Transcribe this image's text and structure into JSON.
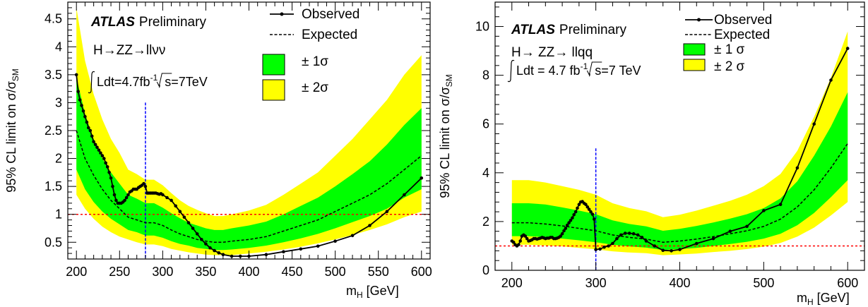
{
  "colors": {
    "band_2sigma": "#ffff00",
    "band_1sigma": "#00ff00",
    "observed": "#000000",
    "expected": "#000000",
    "sm_line": "#ff0000",
    "marker_line": "#0000ff"
  },
  "chart_data": [
    {
      "type": "line",
      "experiment": "ATLAS",
      "status": "Preliminary",
      "process": "H→ZZ→llνν",
      "lumi": {
        "lumi_text": "Ldt=4.7fb",
        "lumi_exp": "-1",
        "energy_text": "s=7TeV"
      },
      "xlabel": "m",
      "xlabel_sub": "H",
      "xlabel_unit": " [GeV]",
      "ylabel": "95% CL limit on σ/σ",
      "ylabel_sub": "SM",
      "xlim": [
        190,
        610
      ],
      "ylim": [
        0.2,
        4.8
      ],
      "xticks": [
        200,
        250,
        300,
        350,
        400,
        450,
        500,
        550,
        600
      ],
      "xtick_labels": [
        "200",
        "250",
        "300",
        "350",
        "400",
        "450",
        "500",
        "550",
        "600"
      ],
      "yticks": [
        0.5,
        1,
        1.5,
        2,
        2.5,
        3,
        3.5,
        4,
        4.5
      ],
      "ytick_labels": [
        "0.5",
        "1",
        "1.5",
        "2",
        "2.5",
        "3",
        "3.5",
        "4",
        "4.5"
      ],
      "legend": {
        "observed": "Observed",
        "expected": "Expected",
        "one_sigma": "± 1σ",
        "two_sigma": "± 2σ"
      },
      "reference_y": 1,
      "vertical_marker_x": 280,
      "vertical_marker_ytop": 3.0,
      "observed": {
        "x": [
          200,
          202,
          204,
          206,
          208,
          210,
          212,
          214,
          216,
          218,
          220,
          222,
          224,
          226,
          228,
          230,
          232,
          234,
          236,
          238,
          240,
          242,
          244,
          246,
          248,
          250,
          252,
          254,
          256,
          258,
          260,
          262,
          264,
          266,
          268,
          270,
          272,
          274,
          276,
          278,
          280,
          282,
          284,
          286,
          288,
          290,
          292,
          294,
          296,
          298,
          300,
          305,
          310,
          315,
          320,
          325,
          330,
          335,
          340,
          345,
          350,
          355,
          360,
          365,
          370,
          380,
          390,
          400,
          420,
          440,
          460,
          480,
          500,
          520,
          540,
          560,
          580,
          600
        ],
        "y": [
          3.5,
          3.2,
          3.05,
          2.95,
          2.85,
          2.75,
          2.65,
          2.55,
          2.5,
          2.4,
          2.3,
          2.25,
          2.2,
          2.15,
          2.1,
          2.05,
          2.0,
          1.92,
          1.85,
          1.75,
          1.65,
          1.5,
          1.35,
          1.25,
          1.2,
          1.2,
          1.2,
          1.22,
          1.25,
          1.3,
          1.35,
          1.4,
          1.42,
          1.45,
          1.45,
          1.45,
          1.48,
          1.5,
          1.52,
          1.55,
          1.5,
          1.38,
          1.38,
          1.38,
          1.38,
          1.38,
          1.38,
          1.37,
          1.36,
          1.37,
          1.35,
          1.3,
          1.25,
          1.15,
          1.05,
          0.95,
          0.85,
          0.75,
          0.65,
          0.55,
          0.47,
          0.4,
          0.35,
          0.31,
          0.28,
          0.25,
          0.25,
          0.25,
          0.28,
          0.33,
          0.38,
          0.43,
          0.52,
          0.62,
          0.8,
          1.05,
          1.35,
          1.65
        ]
      },
      "expected": {
        "x": [
          200,
          210,
          220,
          230,
          240,
          250,
          260,
          270,
          280,
          290,
          300,
          310,
          320,
          330,
          340,
          350,
          360,
          370,
          380,
          400,
          420,
          440,
          460,
          480,
          500,
          520,
          540,
          560,
          580,
          600
        ],
        "y": [
          2.5,
          2.0,
          1.7,
          1.45,
          1.25,
          1.1,
          0.95,
          0.9,
          0.85,
          0.85,
          0.8,
          0.72,
          0.65,
          0.6,
          0.55,
          0.52,
          0.5,
          0.5,
          0.52,
          0.55,
          0.6,
          0.7,
          0.8,
          0.9,
          1.05,
          1.2,
          1.35,
          1.55,
          1.8,
          2.05
        ]
      },
      "band_1sigma": {
        "x": [
          200,
          210,
          220,
          230,
          240,
          250,
          260,
          270,
          280,
          290,
          300,
          310,
          320,
          330,
          340,
          350,
          360,
          370,
          380,
          400,
          420,
          440,
          460,
          480,
          500,
          520,
          540,
          560,
          580,
          600
        ],
        "low": [
          1.8,
          1.45,
          1.22,
          1.05,
          0.92,
          0.82,
          0.72,
          0.68,
          0.62,
          0.62,
          0.58,
          0.52,
          0.47,
          0.44,
          0.4,
          0.38,
          0.36,
          0.36,
          0.37,
          0.4,
          0.44,
          0.5,
          0.57,
          0.65,
          0.75,
          0.86,
          0.97,
          1.1,
          1.3,
          1.45
        ],
        "high": [
          3.45,
          2.8,
          2.35,
          2.0,
          1.75,
          1.55,
          1.35,
          1.28,
          1.2,
          1.2,
          1.12,
          1.02,
          0.93,
          0.85,
          0.8,
          0.75,
          0.72,
          0.72,
          0.75,
          0.8,
          0.87,
          1.0,
          1.15,
          1.3,
          1.5,
          1.72,
          1.95,
          2.25,
          2.6,
          2.9
        ]
      },
      "band_2sigma": {
        "x": [
          200,
          210,
          220,
          230,
          240,
          250,
          260,
          270,
          280,
          290,
          300,
          310,
          320,
          330,
          340,
          350,
          360,
          370,
          380,
          400,
          420,
          440,
          460,
          480,
          500,
          520,
          540,
          560,
          580,
          600
        ],
        "low": [
          1.35,
          1.1,
          0.92,
          0.78,
          0.68,
          0.6,
          0.55,
          0.5,
          0.46,
          0.46,
          0.43,
          0.38,
          0.35,
          0.32,
          0.3,
          0.28,
          0.27,
          0.27,
          0.27,
          0.3,
          0.33,
          0.37,
          0.42,
          0.48,
          0.55,
          0.63,
          0.72,
          0.82,
          0.95,
          1.05
        ],
        "high": [
          4.7,
          3.75,
          3.15,
          2.7,
          2.35,
          2.1,
          1.8,
          1.72,
          1.62,
          1.62,
          1.52,
          1.38,
          1.25,
          1.15,
          1.08,
          1.02,
          0.97,
          0.97,
          1.0,
          1.07,
          1.17,
          1.35,
          1.55,
          1.75,
          2.05,
          2.35,
          2.7,
          3.05,
          3.5,
          3.85
        ]
      }
    },
    {
      "type": "line",
      "experiment": "ATLAS",
      "status": "Preliminary",
      "process": "H→ ZZ→ llqq",
      "lumi": {
        "lumi_text": "Ldt = 4.7 fb",
        "lumi_exp": "-1",
        "energy_text": "s=7 TeV"
      },
      "xlabel": "m",
      "xlabel_sub": "H",
      "xlabel_unit": " [GeV]",
      "ylabel": "95% CL limit on σ/σ",
      "ylabel_sub": "SM",
      "xlim": [
        180,
        620
      ],
      "ylim": [
        0,
        11
      ],
      "xticks": [
        200,
        300,
        400,
        500,
        600
      ],
      "xtick_labels": [
        "200",
        "300",
        "400",
        "500",
        "600"
      ],
      "yticks": [
        0,
        2,
        4,
        6,
        8,
        10
      ],
      "ytick_labels": [
        "0",
        "2",
        "4",
        "6",
        "8",
        "10"
      ],
      "legend": {
        "observed": "Observed",
        "expected": "Expected",
        "one_sigma": "± 1 σ",
        "two_sigma": "± 2 σ"
      },
      "reference_y": 1,
      "vertical_marker_x": 300,
      "vertical_marker_ytop": 5.0,
      "observed": {
        "x": [
          200,
          202,
          204,
          206,
          208,
          210,
          212,
          214,
          216,
          218,
          220,
          222,
          224,
          226,
          228,
          230,
          232,
          234,
          236,
          238,
          240,
          242,
          244,
          246,
          248,
          250,
          252,
          254,
          256,
          258,
          260,
          262,
          264,
          266,
          268,
          270,
          272,
          274,
          276,
          278,
          280,
          282,
          284,
          286,
          288,
          290,
          292,
          294,
          296,
          298,
          300,
          305,
          310,
          315,
          320,
          325,
          330,
          335,
          340,
          345,
          350,
          355,
          360,
          370,
          380,
          390,
          400,
          420,
          440,
          460,
          480,
          500,
          520,
          540,
          560,
          580,
          600
        ],
        "y": [
          1.2,
          1.15,
          1.05,
          1.0,
          1.05,
          1.2,
          1.4,
          1.45,
          1.4,
          1.3,
          1.2,
          1.22,
          1.25,
          1.3,
          1.3,
          1.28,
          1.3,
          1.32,
          1.35,
          1.33,
          1.3,
          1.32,
          1.32,
          1.35,
          1.35,
          1.3,
          1.3,
          1.32,
          1.35,
          1.4,
          1.5,
          1.62,
          1.72,
          1.85,
          1.95,
          2.05,
          2.15,
          2.28,
          2.4,
          2.55,
          2.7,
          2.8,
          2.82,
          2.75,
          2.7,
          2.6,
          2.5,
          2.4,
          2.3,
          2.1,
          0.85,
          0.87,
          0.95,
          1.0,
          1.1,
          1.3,
          1.45,
          1.52,
          1.52,
          1.5,
          1.45,
          1.35,
          1.2,
          1.0,
          0.82,
          0.8,
          0.85,
          1.1,
          1.3,
          1.6,
          1.8,
          2.45,
          2.7,
          4.2,
          6.0,
          7.8,
          9.1
        ]
      },
      "expected": {
        "x": [
          200,
          220,
          240,
          260,
          280,
          300,
          320,
          340,
          360,
          380,
          400,
          420,
          440,
          460,
          480,
          500,
          520,
          540,
          560,
          580,
          600
        ],
        "y": [
          1.95,
          1.95,
          1.9,
          1.82,
          1.72,
          1.62,
          1.45,
          1.35,
          1.28,
          1.15,
          1.2,
          1.28,
          1.38,
          1.5,
          1.62,
          1.8,
          2.1,
          2.6,
          3.3,
          4.2,
          5.2
        ]
      },
      "band_1sigma": {
        "x": [
          200,
          220,
          240,
          260,
          280,
          300,
          320,
          340,
          360,
          380,
          400,
          420,
          440,
          460,
          480,
          500,
          520,
          540,
          560,
          580,
          600
        ],
        "low": [
          1.4,
          1.4,
          1.36,
          1.3,
          1.23,
          1.15,
          1.05,
          0.98,
          0.93,
          0.83,
          0.87,
          0.92,
          1.0,
          1.08,
          1.17,
          1.3,
          1.5,
          1.85,
          2.35,
          3.0,
          3.7
        ],
        "high": [
          2.75,
          2.75,
          2.7,
          2.58,
          2.45,
          2.3,
          2.05,
          1.9,
          1.8,
          1.62,
          1.7,
          1.82,
          1.96,
          2.12,
          2.3,
          2.55,
          2.95,
          3.65,
          4.7,
          5.9,
          7.3
        ]
      },
      "band_2sigma": {
        "x": [
          200,
          220,
          240,
          260,
          280,
          300,
          320,
          340,
          360,
          380,
          400,
          420,
          440,
          460,
          480,
          500,
          520,
          540,
          560,
          580,
          600
        ],
        "low": [
          1.05,
          1.05,
          1.02,
          0.98,
          0.92,
          0.86,
          0.78,
          0.73,
          0.7,
          0.62,
          0.65,
          0.69,
          0.75,
          0.8,
          0.87,
          0.97,
          1.12,
          1.38,
          1.75,
          2.25,
          2.8
        ],
        "high": [
          3.7,
          3.7,
          3.6,
          3.45,
          3.3,
          3.1,
          2.75,
          2.55,
          2.42,
          2.18,
          2.28,
          2.45,
          2.65,
          2.85,
          3.1,
          3.45,
          3.95,
          4.9,
          6.3,
          7.9,
          9.8
        ]
      }
    }
  ]
}
